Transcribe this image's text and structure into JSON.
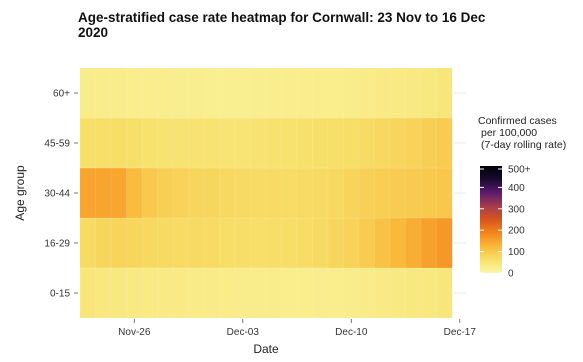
{
  "chart_data": {
    "type": "heatmap",
    "title_lines": [
      "Age-stratified case rate heatmap for Cornwall: 23 Nov to 16 Dec",
      "2020"
    ],
    "xlabel": "Date",
    "ylabel": "Age group",
    "x_start": "2020-11-23",
    "x_end": "2020-12-16",
    "x_ticks": [
      "Nov-26",
      "Dec-03",
      "Dec-10",
      "Dec-17"
    ],
    "age_groups": [
      "0-15",
      "16-29",
      "30-44",
      "45-59",
      "60+"
    ],
    "values": [
      [
        45,
        42,
        40,
        38,
        36,
        35,
        34,
        33,
        32,
        31,
        30,
        30,
        29,
        28,
        28,
        27,
        28,
        30,
        32,
        35,
        38,
        40,
        42,
        45
      ],
      [
        70,
        78,
        82,
        80,
        75,
        72,
        70,
        72,
        70,
        66,
        65,
        64,
        65,
        66,
        68,
        72,
        78,
        85,
        95,
        110,
        125,
        140,
        155,
        165
      ],
      [
        150,
        150,
        148,
        120,
        100,
        90,
        85,
        80,
        78,
        75,
        72,
        70,
        70,
        68,
        70,
        72,
        75,
        82,
        88,
        92,
        95,
        98,
        100,
        102
      ],
      [
        62,
        64,
        66,
        62,
        58,
        55,
        55,
        54,
        54,
        52,
        52,
        54,
        56,
        58,
        60,
        62,
        64,
        66,
        70,
        75,
        80,
        85,
        90,
        95
      ],
      [
        30,
        30,
        29,
        28,
        27,
        26,
        25,
        25,
        24,
        24,
        24,
        25,
        26,
        26,
        27,
        28,
        28,
        30,
        32,
        34,
        36,
        38,
        40,
        45
      ]
    ],
    "legend": {
      "title_lines": [
        "Confirmed cases",
        "per 100,000",
        "(7-day rolling rate)"
      ],
      "ticks": [
        "0",
        "100",
        "200",
        "300",
        "400",
        "500+"
      ],
      "min": 0,
      "max": 500
    },
    "colors": [
      "#fbf7a7",
      "#f7e06a",
      "#f9b93a",
      "#f3861c",
      "#d6561e",
      "#a43b4c",
      "#5c1b6e",
      "#1a0a30",
      "#000004"
    ],
    "grid": true
  }
}
